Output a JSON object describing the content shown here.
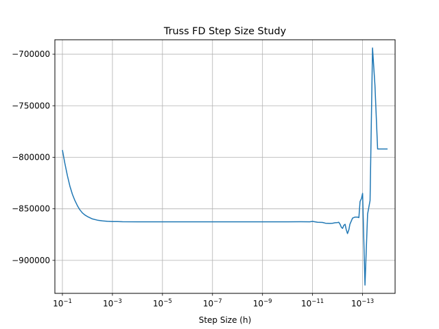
{
  "chart_data": {
    "type": "line",
    "title": "Truss FD Step Size Study",
    "xlabel": "Step Size (h)",
    "ylabel": "",
    "x_scale": "log",
    "x_reversed": true,
    "xlim": [
      0.2,
      5e-15
    ],
    "ylim": [
      -932000,
      -686000
    ],
    "grid": true,
    "line_color": "#1f77b4",
    "grid_color": "#b0b0b0",
    "x_ticks": [
      {
        "value": 0.1,
        "base": "10",
        "exp": "−1"
      },
      {
        "value": 0.001,
        "base": "10",
        "exp": "−3"
      },
      {
        "value": 1e-05,
        "base": "10",
        "exp": "−5"
      },
      {
        "value": 1e-07,
        "base": "10",
        "exp": "−7"
      },
      {
        "value": 1e-09,
        "base": "10",
        "exp": "−9"
      },
      {
        "value": 1e-11,
        "base": "10",
        "exp": "−11"
      },
      {
        "value": 1e-13,
        "base": "10",
        "exp": "−13"
      }
    ],
    "y_ticks": [
      {
        "value": -700000,
        "label": "−700000"
      },
      {
        "value": -750000,
        "label": "−750000"
      },
      {
        "value": -800000,
        "label": "−800000"
      },
      {
        "value": -850000,
        "label": "−850000"
      },
      {
        "value": -900000,
        "label": "−900000"
      }
    ],
    "series": [
      {
        "x": [
          0.1,
          0.0794,
          0.0631,
          0.0501,
          0.0398,
          0.0316,
          0.0251,
          0.02,
          0.0158,
          0.0126,
          0.01,
          0.00631,
          0.00398,
          0.00251,
          0.00158,
          0.001,
          0.000631,
          0.000398,
          0.0001,
          1e-05,
          1e-06,
          1e-07,
          1e-08,
          1e-09,
          1e-10,
          3e-11,
          1.3e-11,
          1e-11,
          6.3e-12,
          4e-12,
          3e-12,
          2e-12,
          1.6e-12,
          1.26e-12,
          1e-12,
          9e-13,
          7.9e-13,
          7e-13,
          6.3e-13,
          5.6e-13,
          5e-13,
          4.5e-13,
          4e-13,
          3.5e-13,
          3.2e-13,
          2.5e-13,
          2e-13,
          1.6e-13,
          1.4e-13,
          1.26e-13,
          1.1e-13,
          1e-13,
          8e-14,
          6.3e-14,
          5e-14,
          4e-14,
          3.2e-14,
          2.5e-14,
          2e-14,
          1.6e-14,
          1e-14
        ],
        "y": [
          -793000,
          -806000,
          -818000,
          -828000,
          -836000,
          -842000,
          -847000,
          -851000,
          -854000,
          -856000,
          -857500,
          -859800,
          -861000,
          -861700,
          -862100,
          -862300,
          -862400,
          -862500,
          -862600,
          -862600,
          -862600,
          -862600,
          -862600,
          -862600,
          -862600,
          -862500,
          -862600,
          -862200,
          -863000,
          -863200,
          -864000,
          -864200,
          -864000,
          -863500,
          -863300,
          -863000,
          -865000,
          -868000,
          -869000,
          -866000,
          -865000,
          -870000,
          -874000,
          -870000,
          -865000,
          -859000,
          -858000,
          -858000,
          -858500,
          -843000,
          -840000,
          -835000,
          -924000,
          -855000,
          -842000,
          -694000,
          -730000,
          -792000,
          -792000,
          -792000,
          -792000
        ]
      }
    ]
  }
}
